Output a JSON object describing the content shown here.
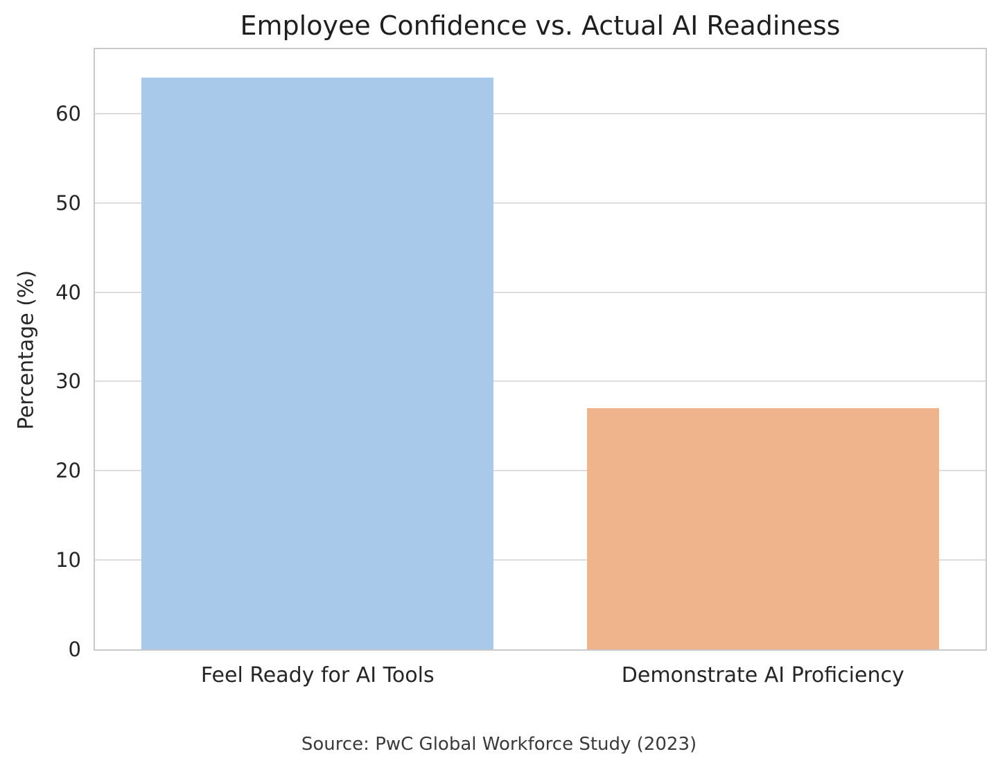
{
  "chart_data": {
    "type": "bar",
    "title": "Employee Confidence vs. Actual AI Readiness",
    "xlabel": "",
    "ylabel": "Percentage (%)",
    "categories": [
      "Feel Ready for AI Tools",
      "Demonstrate AI Proficiency"
    ],
    "values": [
      64,
      27
    ],
    "bar_colors": [
      "#a9c9ea",
      "#f0b48c"
    ],
    "yticks": [
      0,
      10,
      20,
      30,
      40,
      50,
      60
    ],
    "ylim": [
      0,
      67.2
    ],
    "grid": true,
    "legend": false,
    "caption": "Source: PwC Global Workforce Study (2023)"
  },
  "colors": {
    "background": "#ffffff",
    "grid": "#dcdcdc",
    "spine": "#c9c9c9",
    "title_text": "#1f1f1f",
    "axis_text": "#262626",
    "caption_text": "#3a3a3a"
  }
}
